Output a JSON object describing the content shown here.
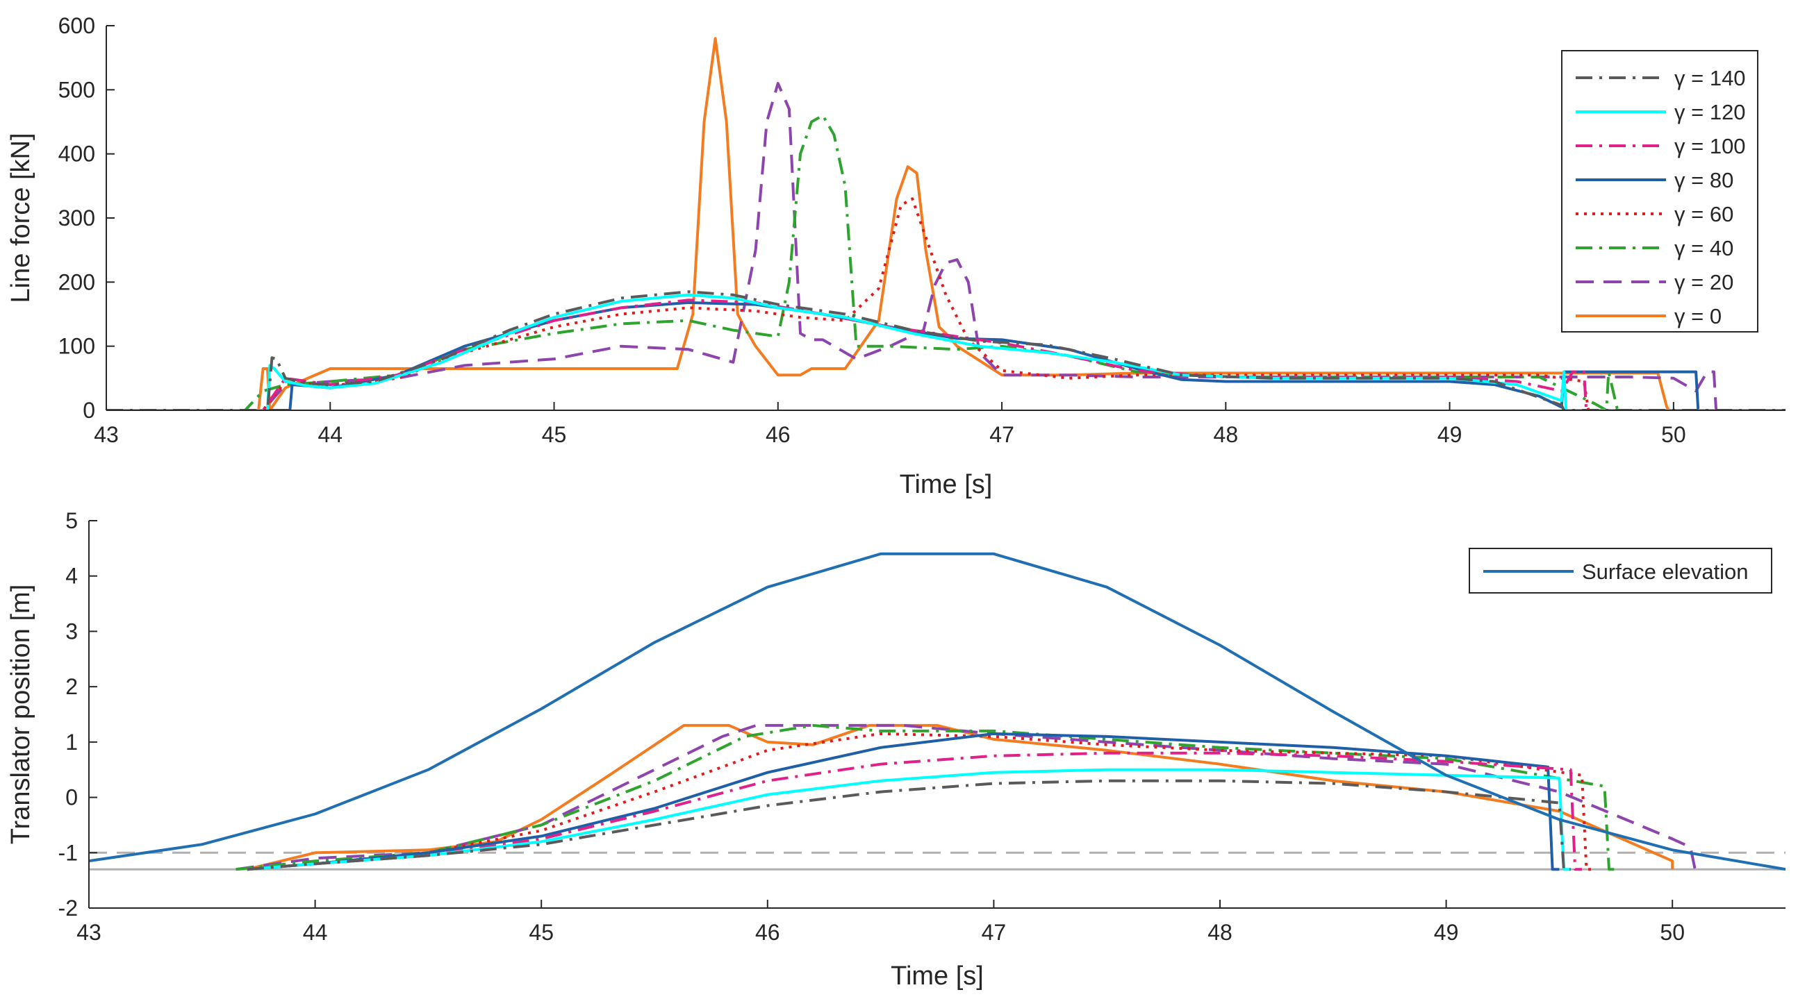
{
  "chart_data": [
    {
      "type": "line",
      "xlabel": "Time [s]",
      "ylabel": "Line force [kN]",
      "xlim": [
        43,
        50.5
      ],
      "ylim": [
        0,
        600
      ],
      "xticks": [
        43,
        44,
        45,
        46,
        47,
        48,
        49,
        50
      ],
      "yticks": [
        0,
        100,
        200,
        300,
        400,
        500,
        600
      ],
      "legend": {
        "position": "top-right",
        "entries": [
          "γ = 140",
          "γ = 120",
          "γ = 100",
          "γ = 80",
          "γ = 60",
          "γ = 40",
          "γ = 20",
          "γ = 0"
        ]
      },
      "series": [
        {
          "name": "γ = 140",
          "color": "#5a5a5a",
          "dash": "dashdot",
          "x": [
            43,
            43.72,
            43.74,
            43.76,
            43.8,
            43.9,
            44.0,
            44.2,
            44.5,
            44.8,
            45.0,
            45.3,
            45.6,
            45.8,
            46.0,
            46.3,
            46.6,
            46.9,
            47.2,
            47.5,
            47.8,
            48.2,
            48.6,
            49.0,
            49.2,
            49.4,
            49.5,
            49.51,
            49.55,
            49.56,
            50.5
          ],
          "y": [
            0,
            0,
            82,
            80,
            50,
            42,
            40,
            45,
            80,
            125,
            150,
            175,
            185,
            180,
            165,
            150,
            125,
            108,
            102,
            80,
            55,
            50,
            50,
            50,
            45,
            20,
            8,
            0,
            0,
            0,
            0
          ]
        },
        {
          "name": "γ = 120",
          "color": "#00ffff",
          "dash": "solid",
          "x": [
            43,
            43.72,
            43.73,
            43.75,
            43.8,
            43.9,
            44.0,
            44.2,
            44.5,
            44.8,
            45.0,
            45.3,
            45.6,
            45.8,
            46.0,
            46.3,
            46.6,
            46.9,
            47.2,
            47.5,
            47.8,
            48.2,
            48.6,
            49.0,
            49.3,
            49.5,
            49.51,
            49.52,
            50.5
          ],
          "y": [
            0,
            0,
            70,
            65,
            45,
            38,
            35,
            42,
            75,
            120,
            145,
            170,
            180,
            175,
            160,
            145,
            120,
            100,
            90,
            75,
            55,
            50,
            50,
            50,
            40,
            15,
            60,
            0,
            0
          ]
        },
        {
          "name": "γ = 100",
          "color": "#e0218a",
          "dash": "dashdot",
          "x": [
            43,
            43.7,
            43.8,
            44.0,
            44.3,
            44.6,
            45.0,
            45.3,
            45.6,
            45.9,
            46.2,
            46.5,
            46.8,
            47.0,
            47.3,
            47.6,
            48.0,
            48.5,
            49.0,
            49.3,
            49.5,
            49.55,
            49.6,
            49.61,
            50.5
          ],
          "y": [
            0,
            0,
            50,
            40,
            55,
            95,
            140,
            160,
            172,
            168,
            150,
            130,
            115,
            105,
            85,
            62,
            52,
            52,
            52,
            45,
            30,
            60,
            60,
            0,
            0
          ]
        },
        {
          "name": "γ = 80",
          "color": "#1f5fa8",
          "dash": "solid",
          "x": [
            43,
            43.82,
            43.83,
            43.9,
            44.0,
            44.3,
            44.6,
            45.0,
            45.3,
            45.6,
            45.9,
            46.2,
            46.5,
            46.8,
            47.0,
            47.3,
            47.6,
            47.8,
            48.0,
            48.5,
            49.0,
            49.2,
            49.4,
            49.5,
            49.51,
            49.55,
            50.0,
            50.1,
            50.11,
            50.5
          ],
          "y": [
            0,
            0,
            40,
            38,
            35,
            55,
            100,
            140,
            160,
            168,
            165,
            150,
            130,
            112,
            110,
            95,
            65,
            48,
            45,
            45,
            45,
            40,
            22,
            5,
            60,
            60,
            60,
            60,
            0,
            0
          ]
        },
        {
          "name": "γ = 60",
          "color": "#e01b1b",
          "dash": "dot",
          "x": [
            43,
            43.7,
            43.8,
            44.0,
            44.3,
            44.6,
            45.0,
            45.3,
            45.6,
            45.9,
            46.1,
            46.3,
            46.45,
            46.55,
            46.6,
            46.65,
            46.75,
            46.85,
            47.0,
            47.3,
            47.6,
            48.0,
            48.5,
            49.0,
            49.4,
            49.6,
            49.62,
            49.65,
            50.5
          ],
          "y": [
            0,
            0,
            45,
            38,
            50,
            90,
            130,
            150,
            160,
            155,
            145,
            140,
            190,
            320,
            330,
            280,
            180,
            110,
            62,
            50,
            55,
            55,
            55,
            55,
            55,
            45,
            0,
            0,
            0
          ]
        },
        {
          "name": "γ = 40",
          "color": "#2ea32e",
          "dash": "dashdot",
          "x": [
            43,
            43.62,
            43.7,
            43.8,
            44.0,
            44.3,
            44.6,
            45.0,
            45.3,
            45.6,
            45.8,
            46.0,
            46.05,
            46.1,
            46.15,
            46.2,
            46.25,
            46.3,
            46.35,
            46.5,
            46.8,
            47.0,
            47.3,
            47.6,
            48.0,
            48.5,
            49.0,
            49.4,
            49.65,
            49.7,
            49.71,
            49.75,
            50.5
          ],
          "y": [
            0,
            0,
            30,
            40,
            45,
            55,
            95,
            120,
            135,
            140,
            125,
            115,
            200,
            400,
            450,
            460,
            430,
            350,
            100,
            100,
            95,
            100,
            85,
            60,
            52,
            52,
            52,
            52,
            10,
            0,
            60,
            0,
            0
          ]
        },
        {
          "name": "γ = 20",
          "color": "#8e44ad",
          "dash": "dash",
          "x": [
            43,
            43.7,
            43.8,
            44.0,
            44.3,
            44.6,
            45.0,
            45.3,
            45.6,
            45.8,
            45.9,
            45.95,
            46.0,
            46.05,
            46.1,
            46.15,
            46.2,
            46.35,
            46.5,
            46.65,
            46.7,
            46.75,
            46.8,
            46.85,
            46.9,
            47.0,
            47.3,
            47.6,
            48.0,
            48.5,
            49.0,
            49.4,
            49.8,
            50.0,
            50.1,
            50.15,
            50.18,
            50.19,
            50.2,
            50.5
          ],
          "y": [
            0,
            0,
            40,
            45,
            50,
            70,
            80,
            100,
            95,
            75,
            250,
            450,
            510,
            470,
            120,
            110,
            110,
            80,
            100,
            125,
            195,
            230,
            235,
            200,
            90,
            55,
            55,
            52,
            52,
            52,
            52,
            52,
            52,
            50,
            30,
            60,
            60,
            0,
            0,
            0
          ]
        },
        {
          "name": "γ = 0",
          "color": "#f47c20",
          "dash": "solid",
          "x": [
            43,
            43.68,
            43.7,
            43.72,
            43.73,
            43.75,
            43.8,
            44.0,
            44.2,
            44.5,
            44.8,
            45.0,
            45.3,
            45.55,
            45.62,
            45.67,
            45.72,
            45.77,
            45.82,
            45.85,
            45.9,
            46.0,
            46.1,
            46.15,
            46.3,
            46.45,
            46.53,
            46.58,
            46.62,
            46.66,
            46.72,
            46.75,
            46.8,
            47.0,
            47.3,
            47.6,
            48.0,
            48.5,
            49.0,
            49.4,
            49.5,
            49.8,
            49.93,
            49.97,
            49.98,
            50.0,
            50.5
          ],
          "y": [
            0,
            0,
            65,
            65,
            0,
            10,
            35,
            65,
            65,
            65,
            65,
            65,
            65,
            65,
            150,
            450,
            580,
            450,
            150,
            130,
            100,
            55,
            55,
            65,
            65,
            140,
            330,
            380,
            370,
            250,
            130,
            120,
            100,
            55,
            55,
            58,
            58,
            58,
            58,
            58,
            58,
            58,
            58,
            5,
            0,
            0,
            0
          ]
        }
      ]
    },
    {
      "type": "line",
      "xlabel": "Time [s]",
      "ylabel": "Translator position [m]",
      "xlim": [
        43,
        50.5
      ],
      "ylim": [
        -2,
        5
      ],
      "xticks": [
        43,
        44,
        45,
        46,
        47,
        48,
        49,
        50
      ],
      "yticks": [
        -2,
        -1,
        0,
        1,
        2,
        3,
        4,
        5
      ],
      "reference_lines": [
        {
          "y": -1,
          "color": "#b0b0b0",
          "dash": "dash"
        },
        {
          "y": -1.3,
          "color": "#b0b0b0",
          "dash": "solid"
        }
      ],
      "legend": {
        "position": "top-right",
        "entries": [
          "Surface elevation"
        ]
      },
      "series": [
        {
          "name": "Surface elevation",
          "color": "#1f6fb2",
          "dash": "solid",
          "x": [
            43,
            43.5,
            44,
            44.5,
            45,
            45.5,
            46,
            46.5,
            47,
            47.5,
            48,
            48.5,
            49,
            49.5,
            50,
            50.5
          ],
          "y": [
            -1.15,
            -0.85,
            -0.3,
            0.5,
            1.6,
            2.8,
            3.8,
            4.4,
            4.4,
            3.8,
            2.75,
            1.55,
            0.4,
            -0.4,
            -0.95,
            -1.3
          ]
        },
        {
          "name": "γ = 140",
          "color": "#5a5a5a",
          "dash": "dashdot",
          "x": [
            43.7,
            44,
            44.5,
            45,
            45.5,
            46,
            46.5,
            47,
            47.5,
            48,
            48.5,
            49,
            49.5,
            49.52,
            49.55
          ],
          "y": [
            -1.3,
            -1.2,
            -1.05,
            -0.85,
            -0.5,
            -0.15,
            0.1,
            0.25,
            0.3,
            0.3,
            0.25,
            0.1,
            -0.1,
            -1.3,
            -1.3
          ]
        },
        {
          "name": "γ = 120",
          "color": "#00ffff",
          "dash": "solid",
          "x": [
            43.7,
            44,
            44.5,
            45,
            45.5,
            46,
            46.5,
            47,
            47.5,
            48,
            48.5,
            49,
            49.5,
            49.52,
            49.55
          ],
          "y": [
            -1.3,
            -1.2,
            -1.05,
            -0.8,
            -0.4,
            0.05,
            0.3,
            0.45,
            0.5,
            0.5,
            0.45,
            0.4,
            0.35,
            -1.3,
            -1.3
          ]
        },
        {
          "name": "γ = 100",
          "color": "#e0218a",
          "dash": "dashdot",
          "x": [
            43.7,
            44,
            44.5,
            45,
            45.5,
            46,
            46.5,
            47,
            47.5,
            48,
            48.5,
            49,
            49.55,
            49.57,
            49.6
          ],
          "y": [
            -1.3,
            -1.2,
            -1.05,
            -0.75,
            -0.25,
            0.3,
            0.6,
            0.75,
            0.8,
            0.8,
            0.75,
            0.65,
            0.5,
            -1.3,
            -1.3
          ]
        },
        {
          "name": "γ = 80",
          "color": "#1f5fa8",
          "dash": "solid",
          "x": [
            43.7,
            44,
            44.5,
            45,
            45.5,
            46,
            46.5,
            47,
            47.5,
            48,
            48.5,
            49,
            49.45,
            49.47,
            49.5
          ],
          "y": [
            -1.3,
            -1.2,
            -1.0,
            -0.7,
            -0.2,
            0.45,
            0.9,
            1.15,
            1.1,
            1.0,
            0.9,
            0.75,
            0.55,
            -1.3,
            -1.3
          ]
        },
        {
          "name": "γ = 60",
          "color": "#e01b1b",
          "dash": "dot",
          "x": [
            43.7,
            44,
            44.5,
            45,
            45.5,
            46,
            46.5,
            47,
            47.5,
            48,
            48.5,
            49,
            49.6,
            49.62,
            49.65
          ],
          "y": [
            -1.3,
            -1.2,
            -1.0,
            -0.6,
            0.1,
            0.85,
            1.15,
            1.1,
            0.95,
            0.85,
            0.8,
            0.75,
            0.4,
            -1.3,
            -1.3
          ]
        },
        {
          "name": "γ = 40",
          "color": "#2ea32e",
          "dash": "dashdot",
          "x": [
            43.65,
            44,
            44.5,
            45,
            45.5,
            45.9,
            46.2,
            46.5,
            47,
            47.5,
            48,
            48.5,
            49,
            49.7,
            49.72,
            49.75
          ],
          "y": [
            -1.3,
            -1.15,
            -1.0,
            -0.5,
            0.3,
            1.1,
            1.3,
            1.2,
            1.2,
            1.05,
            0.9,
            0.8,
            0.7,
            0.2,
            -1.3,
            -1.3
          ]
        },
        {
          "name": "γ = 20",
          "color": "#8e44ad",
          "dash": "dash",
          "x": [
            43.65,
            44,
            44.5,
            45,
            45.4,
            45.8,
            45.95,
            46.3,
            46.6,
            47,
            47.5,
            48,
            48.5,
            49,
            49.5,
            50,
            50.08,
            50.1
          ],
          "y": [
            -1.3,
            -1.1,
            -1.0,
            -0.5,
            0.3,
            1.1,
            1.3,
            1.3,
            1.3,
            1.15,
            1.0,
            0.85,
            0.7,
            0.6,
            0.1,
            -0.75,
            -0.9,
            -1.3
          ]
        },
        {
          "name": "γ = 0",
          "color": "#f47c20",
          "dash": "solid",
          "x": [
            43.7,
            44,
            44.5,
            44.8,
            45,
            45.3,
            45.63,
            45.83,
            46,
            46.2,
            46.45,
            46.75,
            47,
            47.5,
            48,
            48.5,
            49,
            49.5,
            50,
            50.0
          ],
          "y": [
            -1.3,
            -1.0,
            -0.95,
            -0.8,
            -0.4,
            0.4,
            1.3,
            1.3,
            1.0,
            0.95,
            1.3,
            1.3,
            1.05,
            0.85,
            0.6,
            0.3,
            0.1,
            -0.25,
            -1.15,
            -1.3
          ]
        }
      ]
    }
  ]
}
